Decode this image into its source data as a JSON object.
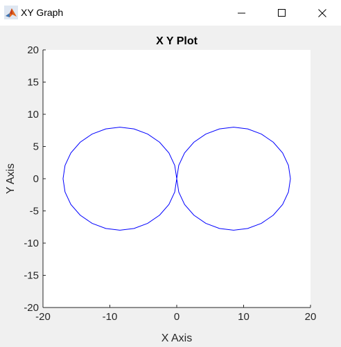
{
  "window": {
    "title": "XY Graph",
    "icon": "matlab-logo-icon",
    "controls": {
      "minimize": "minimize-icon",
      "maximize": "maximize-icon",
      "close": "close-icon"
    }
  },
  "chart_data": {
    "type": "line",
    "title": "X Y Plot",
    "xlabel": "X Axis",
    "ylabel": "Y Axis",
    "xlim": [
      -20,
      20
    ],
    "ylim": [
      -20,
      20
    ],
    "xticks": [
      "-20",
      "-10",
      "0",
      "10",
      "20"
    ],
    "yticks": [
      "20",
      "15",
      "10",
      "5",
      "0",
      "-5",
      "-10",
      "-15",
      "-20"
    ],
    "grid": false,
    "legend": "none",
    "line_color": "#0000ff",
    "series": [
      {
        "x": [
          0,
          -0.3,
          -1.17,
          -2.56,
          -4.34,
          -6.39,
          -8.5,
          -10.61,
          -12.66,
          -14.44,
          -15.83,
          -16.7,
          -17.0,
          -16.7,
          -15.83,
          -14.44,
          -12.66,
          -10.61,
          -8.5,
          -6.39,
          -4.34,
          -2.56,
          -1.17,
          -0.3,
          0,
          0.3,
          1.17,
          2.56,
          4.34,
          6.39,
          8.5,
          10.61,
          12.66,
          14.44,
          15.83,
          16.7,
          17.0,
          16.7,
          15.83,
          14.44,
          12.66,
          10.61,
          8.5,
          6.39,
          4.34,
          2.56,
          1.17,
          0.3,
          0
        ],
        "y": [
          0,
          2.07,
          4.0,
          5.66,
          6.93,
          7.73,
          8.0,
          7.73,
          6.93,
          5.66,
          4.0,
          2.07,
          0,
          -2.07,
          -4.0,
          -5.66,
          -6.93,
          -7.73,
          -8.0,
          -7.73,
          -6.93,
          -5.66,
          -4.0,
          -2.07,
          0,
          2.07,
          4.0,
          5.66,
          6.93,
          7.73,
          8.0,
          7.73,
          6.93,
          5.66,
          4.0,
          2.07,
          0,
          -2.07,
          -4.0,
          -5.66,
          -6.93,
          -7.73,
          -8.0,
          -7.73,
          -6.93,
          -5.66,
          -4.0,
          -2.07,
          0
        ]
      }
    ]
  }
}
